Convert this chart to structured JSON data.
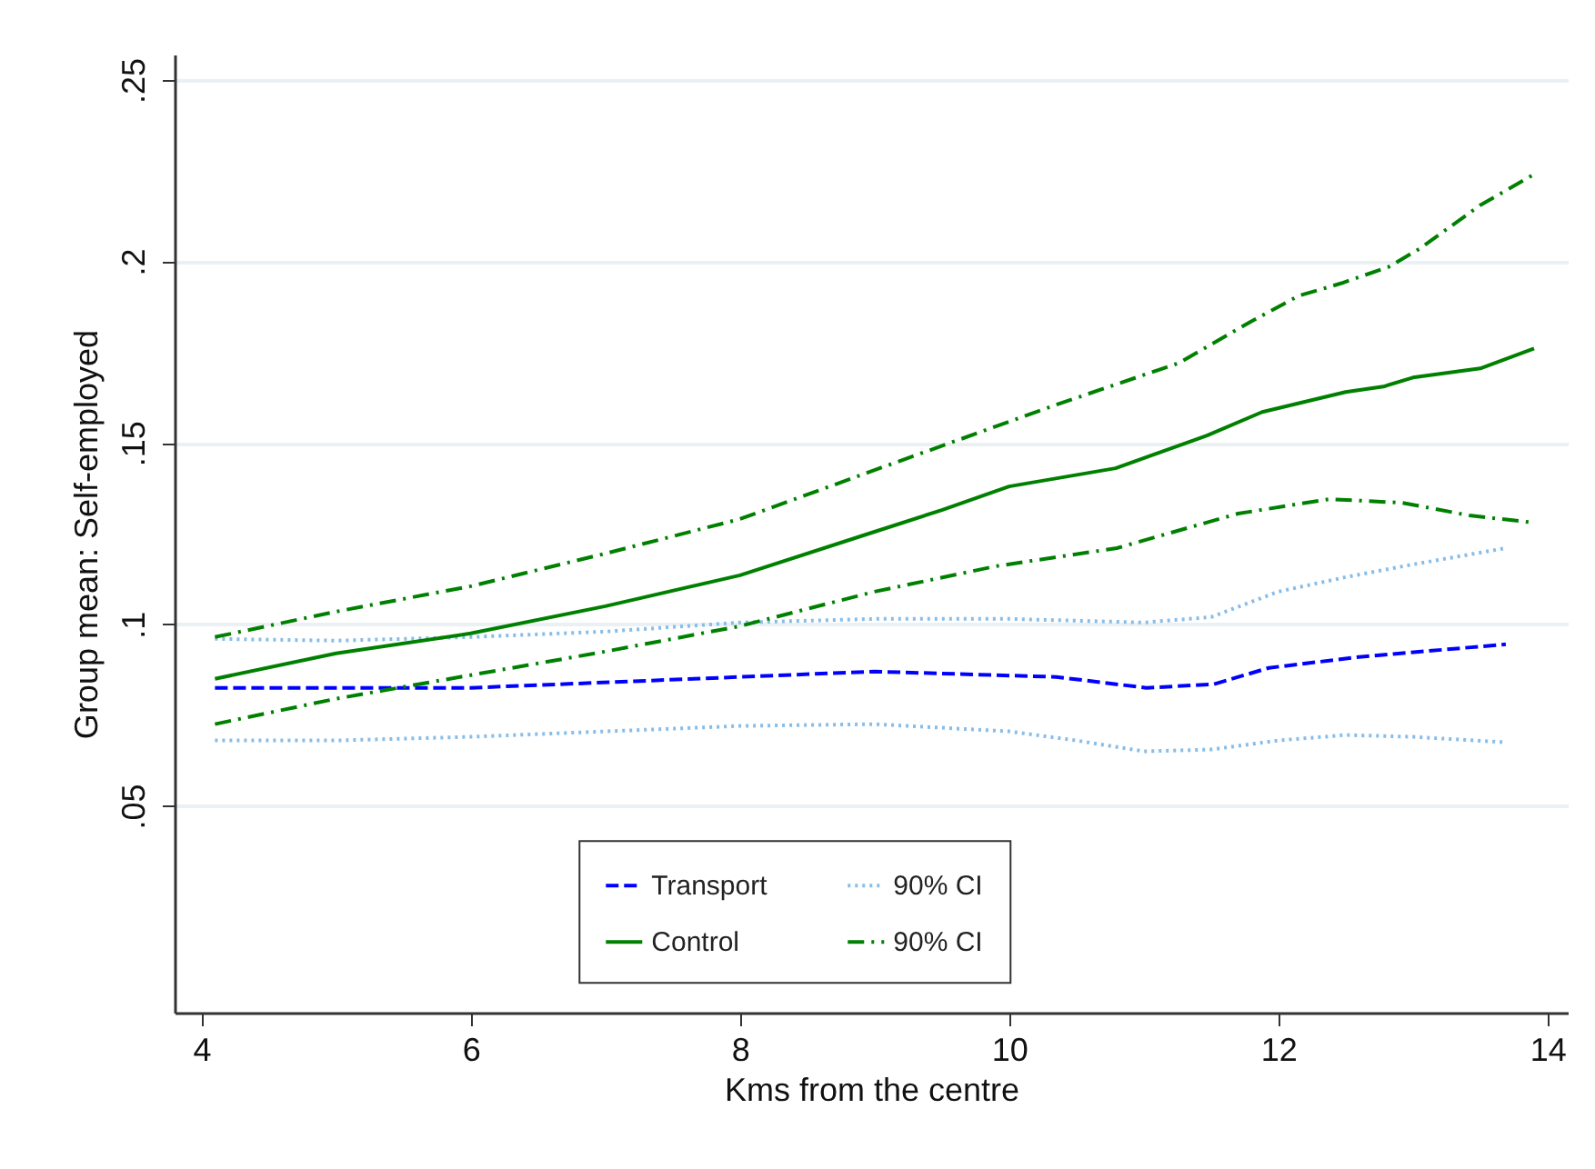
{
  "chart_data": {
    "type": "line",
    "xlabel": "Kms from the centre",
    "ylabel": "Group mean: Self-employed",
    "xlim": [
      3.8,
      14.15
    ],
    "xticks": [
      4,
      6,
      8,
      10,
      12,
      14
    ],
    "ylim": [
      -0.007,
      0.257
    ],
    "yticks": [
      {
        "value": 0.05,
        "label": ".05"
      },
      {
        "value": 0.1,
        "label": ".1"
      },
      {
        "value": 0.15,
        "label": ".15"
      },
      {
        "value": 0.2,
        "label": ".2"
      },
      {
        "value": 0.25,
        "label": ".25"
      }
    ],
    "grid": "y",
    "legend": "bottom",
    "series": [
      {
        "name": "Transport",
        "color": "#0000ff",
        "line_style": "dashed",
        "x": [
          4.1,
          6,
          8,
          9,
          10.35,
          11.02,
          11.52,
          11.93,
          12.6,
          13.69
        ],
        "values": [
          0.0825,
          0.0825,
          0.0855,
          0.087,
          0.0855,
          0.0825,
          0.0835,
          0.088,
          0.091,
          0.0945
        ]
      },
      {
        "name": "90% CI",
        "color": "#87bde8",
        "line_style": "dotted",
        "x": [
          4.1,
          5,
          6,
          7,
          8,
          9,
          10,
          11,
          11.5,
          12,
          12.5,
          13,
          13.69
        ],
        "values": [
          0.096,
          0.0955,
          0.0965,
          0.098,
          0.1005,
          0.1015,
          0.1015,
          0.1005,
          0.102,
          0.109,
          0.113,
          0.1165,
          0.121
        ]
      },
      {
        "name": "Control",
        "color": "#008000",
        "line_style": "solid",
        "x": [
          4.1,
          5,
          6,
          7,
          8,
          9,
          9.5,
          10,
          10.79,
          11.47,
          11.88,
          12.5,
          12.78,
          13,
          13.5,
          13.9
        ],
        "values": [
          0.085,
          0.092,
          0.0975,
          0.105,
          0.1135,
          0.1255,
          0.1315,
          0.138,
          0.143,
          0.152,
          0.1585,
          0.164,
          0.1655,
          0.168,
          0.1705,
          0.176
        ]
      },
      {
        "name": "90% CI",
        "color": "#008000",
        "line_style": "dashdot",
        "x": [
          4.1,
          5,
          6,
          7,
          8,
          9,
          10.35,
          11.26,
          11.8,
          12.15,
          12.47,
          12.82,
          13.05,
          13.5,
          13.9
        ],
        "values": [
          0.0965,
          0.1035,
          0.1105,
          0.1195,
          0.129,
          0.1425,
          0.1605,
          0.172,
          0.1835,
          0.1905,
          0.194,
          0.1985,
          0.2035,
          0.2155,
          0.224
        ]
      },
      {
        "color": "#87bde8",
        "line_style": "dotted",
        "x": [
          4.1,
          5,
          6,
          7,
          8,
          9,
          10,
          10.5,
          11,
          11.5,
          12,
          12.5,
          13,
          13.69
        ],
        "values": [
          0.068,
          0.068,
          0.069,
          0.0705,
          0.072,
          0.0725,
          0.0705,
          0.068,
          0.065,
          0.0655,
          0.068,
          0.0695,
          0.069,
          0.0675
        ]
      },
      {
        "color": "#008000",
        "line_style": "dashdot",
        "x": [
          4.1,
          5,
          6,
          7,
          8,
          9,
          9.9,
          10.8,
          11.7,
          12.38,
          12.92,
          13.42,
          13.9
        ],
        "values": [
          0.0725,
          0.0795,
          0.086,
          0.0925,
          0.0995,
          0.109,
          0.116,
          0.121,
          0.1305,
          0.1345,
          0.1335,
          0.13,
          0.128
        ]
      }
    ]
  }
}
